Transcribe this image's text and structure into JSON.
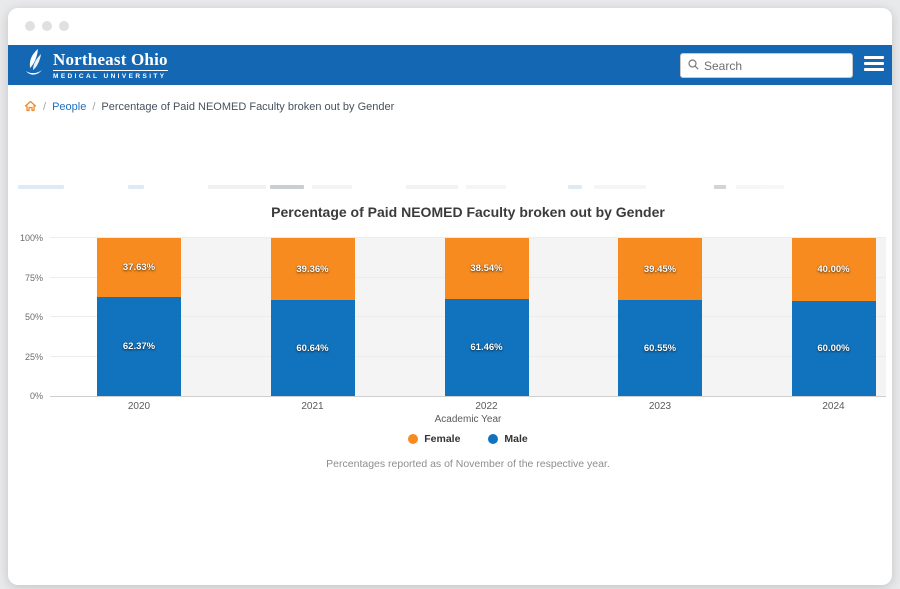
{
  "header": {
    "logo": {
      "line1": "Northeast Ohio",
      "line2": "MEDICAL UNIVERSITY"
    },
    "search_placeholder": "Search",
    "colors": {
      "header_bg": "#1467b3"
    }
  },
  "breadcrumb": {
    "separator": "/",
    "items": [
      {
        "label": "People"
      },
      {
        "label": "Percentage of Paid NEOMED Faculty broken out by Gender"
      }
    ]
  },
  "chart_data": {
    "type": "bar",
    "stacked": true,
    "title": "Percentage of Paid NEOMED Faculty broken out by Gender",
    "categories": [
      "2020",
      "2021",
      "2022",
      "2023",
      "2024"
    ],
    "series": [
      {
        "name": "Female",
        "color": "#f78b1f",
        "values": [
          37.63,
          39.36,
          38.54,
          39.45,
          40.0
        ],
        "labels": [
          "37.63%",
          "39.36%",
          "38.54%",
          "39.45%",
          "40.00%"
        ]
      },
      {
        "name": "Male",
        "color": "#1173bd",
        "values": [
          62.37,
          60.64,
          61.46,
          60.55,
          60.0
        ],
        "labels": [
          "62.37%",
          "60.64%",
          "61.46%",
          "60.55%",
          "60.00%"
        ]
      }
    ],
    "xlabel": "Academic Year",
    "ylabel": "",
    "ylim": [
      0,
      100
    ],
    "yticks": [
      "0%",
      "25%",
      "50%",
      "75%",
      "100%"
    ],
    "grid": true,
    "legend_position": "bottom",
    "legend": [
      {
        "label": "Female",
        "color": "#f78b1f"
      },
      {
        "label": "Male",
        "color": "#1173bd"
      }
    ],
    "footnote": "Percentages reported as of November of the respective year."
  }
}
